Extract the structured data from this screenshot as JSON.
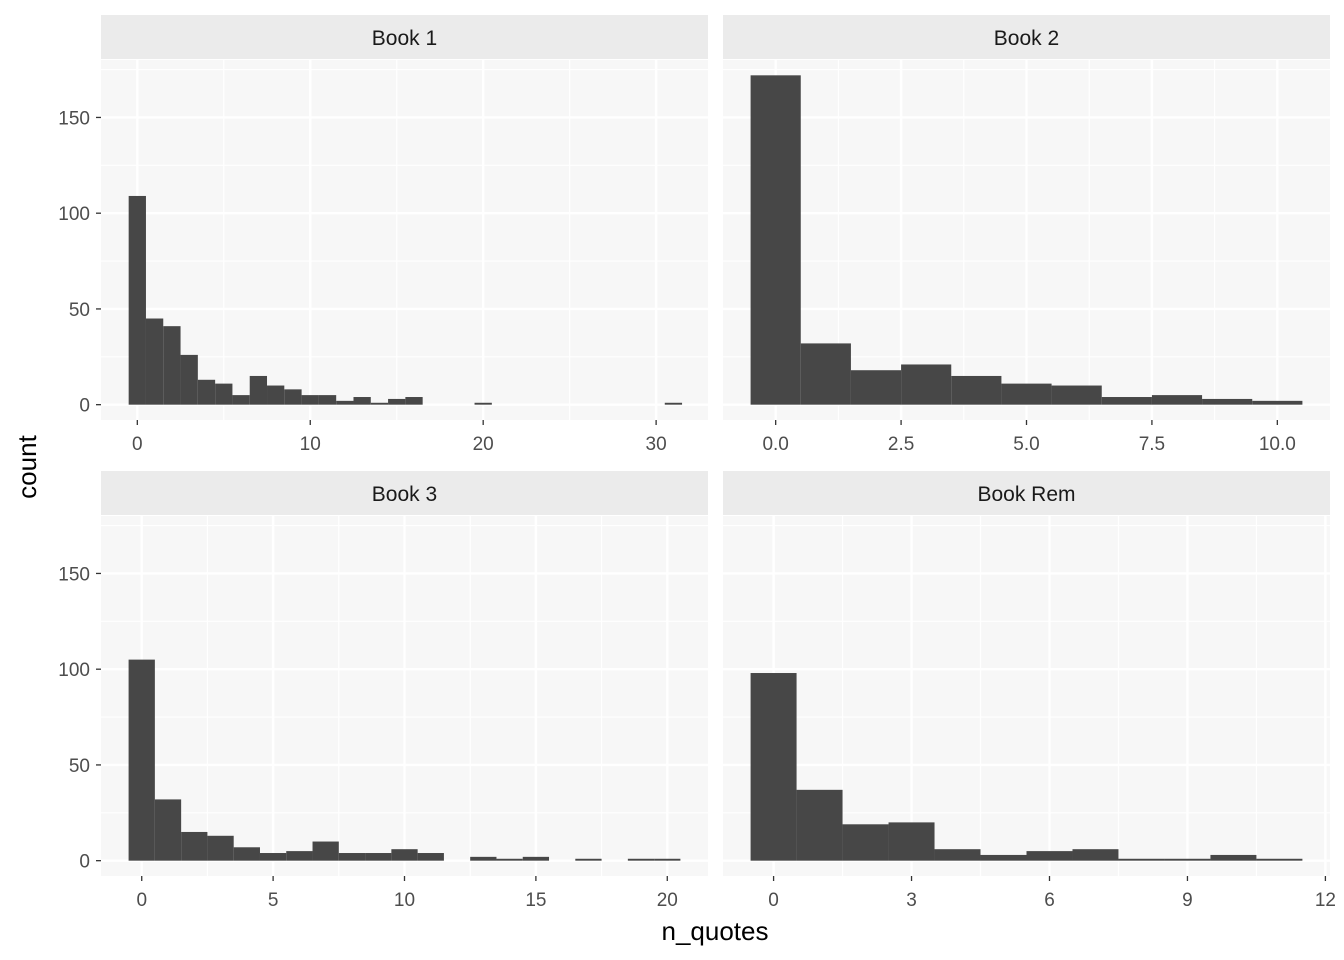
{
  "colors": {
    "panel_background": "#f7f7f7",
    "strip_background": "#ebebeb",
    "gridline": "#ffffff",
    "bar_fill": "#474747",
    "tick_mark": "#333333"
  },
  "chart_data": {
    "type": "bar",
    "subtype": "faceted histogram",
    "xlabel": "n_quotes",
    "ylabel": "count",
    "grid": true,
    "facets": [
      {
        "strip": "Book 1",
        "x_ticks": [
          0,
          10,
          20,
          30
        ],
        "x_tick_labels": [
          "0",
          "10",
          "20",
          "30"
        ],
        "xlim": [
          -2.1,
          33.0
        ],
        "ylim": [
          -8,
          180
        ],
        "y_ticks": [
          0,
          50,
          100,
          150
        ],
        "y_tick_labels": [
          "0",
          "50",
          "100",
          "150"
        ],
        "bin_width": 1,
        "bins": [
          {
            "x": 0,
            "count": 109
          },
          {
            "x": 1,
            "count": 45
          },
          {
            "x": 2,
            "count": 41
          },
          {
            "x": 3,
            "count": 26
          },
          {
            "x": 4,
            "count": 13
          },
          {
            "x": 5,
            "count": 11
          },
          {
            "x": 6,
            "count": 5
          },
          {
            "x": 7,
            "count": 15
          },
          {
            "x": 8,
            "count": 10
          },
          {
            "x": 9,
            "count": 8
          },
          {
            "x": 10,
            "count": 5
          },
          {
            "x": 11,
            "count": 5
          },
          {
            "x": 12,
            "count": 2
          },
          {
            "x": 13,
            "count": 4
          },
          {
            "x": 14,
            "count": 1
          },
          {
            "x": 15,
            "count": 3
          },
          {
            "x": 16,
            "count": 4
          },
          {
            "x": 17,
            "count": 0
          },
          {
            "x": 18,
            "count": 0
          },
          {
            "x": 19,
            "count": 0
          },
          {
            "x": 20,
            "count": 1
          },
          {
            "x": 21,
            "count": 0
          },
          {
            "x": 22,
            "count": 0
          },
          {
            "x": 23,
            "count": 0
          },
          {
            "x": 24,
            "count": 0
          },
          {
            "x": 25,
            "count": 0
          },
          {
            "x": 26,
            "count": 0
          },
          {
            "x": 27,
            "count": 0
          },
          {
            "x": 28,
            "count": 0
          },
          {
            "x": 29,
            "count": 0
          },
          {
            "x": 30,
            "count": 0
          },
          {
            "x": 31,
            "count": 1
          }
        ]
      },
      {
        "strip": "Book 2",
        "x_ticks": [
          0,
          2.5,
          5,
          7.5,
          10
        ],
        "x_tick_labels": [
          "0.0",
          "2.5",
          "5.0",
          "7.5",
          "10.0"
        ],
        "xlim": [
          -1.05,
          11.05
        ],
        "ylim": [
          -8,
          180
        ],
        "y_ticks": [
          0,
          50,
          100,
          150
        ],
        "y_tick_labels": [
          "0",
          "50",
          "100",
          "150"
        ],
        "bin_width": 1,
        "bins": [
          {
            "x": 0,
            "count": 172
          },
          {
            "x": 1,
            "count": 32
          },
          {
            "x": 2,
            "count": 18
          },
          {
            "x": 3,
            "count": 21
          },
          {
            "x": 4,
            "count": 15
          },
          {
            "x": 5,
            "count": 11
          },
          {
            "x": 6,
            "count": 10
          },
          {
            "x": 7,
            "count": 4
          },
          {
            "x": 8,
            "count": 5
          },
          {
            "x": 9,
            "count": 3
          },
          {
            "x": 10,
            "count": 2
          }
        ]
      },
      {
        "strip": "Book 3",
        "x_ticks": [
          0,
          5,
          10,
          15,
          20
        ],
        "x_tick_labels": [
          "0",
          "5",
          "10",
          "15",
          "20"
        ],
        "xlim": [
          -1.55,
          21.55
        ],
        "ylim": [
          -8,
          180
        ],
        "y_ticks": [
          0,
          50,
          100,
          150
        ],
        "y_tick_labels": [
          "0",
          "50",
          "100",
          "150"
        ],
        "bin_width": 1,
        "bins": [
          {
            "x": 0,
            "count": 105
          },
          {
            "x": 1,
            "count": 32
          },
          {
            "x": 2,
            "count": 15
          },
          {
            "x": 3,
            "count": 13
          },
          {
            "x": 4,
            "count": 7
          },
          {
            "x": 5,
            "count": 4
          },
          {
            "x": 6,
            "count": 5
          },
          {
            "x": 7,
            "count": 10
          },
          {
            "x": 8,
            "count": 4
          },
          {
            "x": 9,
            "count": 4
          },
          {
            "x": 10,
            "count": 6
          },
          {
            "x": 11,
            "count": 4
          },
          {
            "x": 12,
            "count": 0
          },
          {
            "x": 13,
            "count": 2
          },
          {
            "x": 14,
            "count": 1
          },
          {
            "x": 15,
            "count": 2
          },
          {
            "x": 16,
            "count": 0
          },
          {
            "x": 17,
            "count": 1
          },
          {
            "x": 18,
            "count": 0
          },
          {
            "x": 19,
            "count": 1
          },
          {
            "x": 20,
            "count": 1
          }
        ]
      },
      {
        "strip": "Book Rem",
        "x_ticks": [
          0,
          3,
          6,
          9,
          12
        ],
        "x_tick_labels": [
          "0",
          "3",
          "6",
          "9",
          "12"
        ],
        "xlim": [
          -1.1,
          12.1
        ],
        "ylim": [
          -8,
          180
        ],
        "y_ticks": [
          0,
          50,
          100,
          150
        ],
        "y_tick_labels": [
          "0",
          "50",
          "100",
          "150"
        ],
        "bin_width": 1,
        "bins": [
          {
            "x": 0,
            "count": 98
          },
          {
            "x": 1,
            "count": 37
          },
          {
            "x": 2,
            "count": 19
          },
          {
            "x": 3,
            "count": 20
          },
          {
            "x": 4,
            "count": 6
          },
          {
            "x": 5,
            "count": 3
          },
          {
            "x": 6,
            "count": 5
          },
          {
            "x": 7,
            "count": 6
          },
          {
            "x": 8,
            "count": 1
          },
          {
            "x": 9,
            "count": 1
          },
          {
            "x": 10,
            "count": 3
          },
          {
            "x": 11,
            "count": 1
          }
        ]
      }
    ]
  }
}
